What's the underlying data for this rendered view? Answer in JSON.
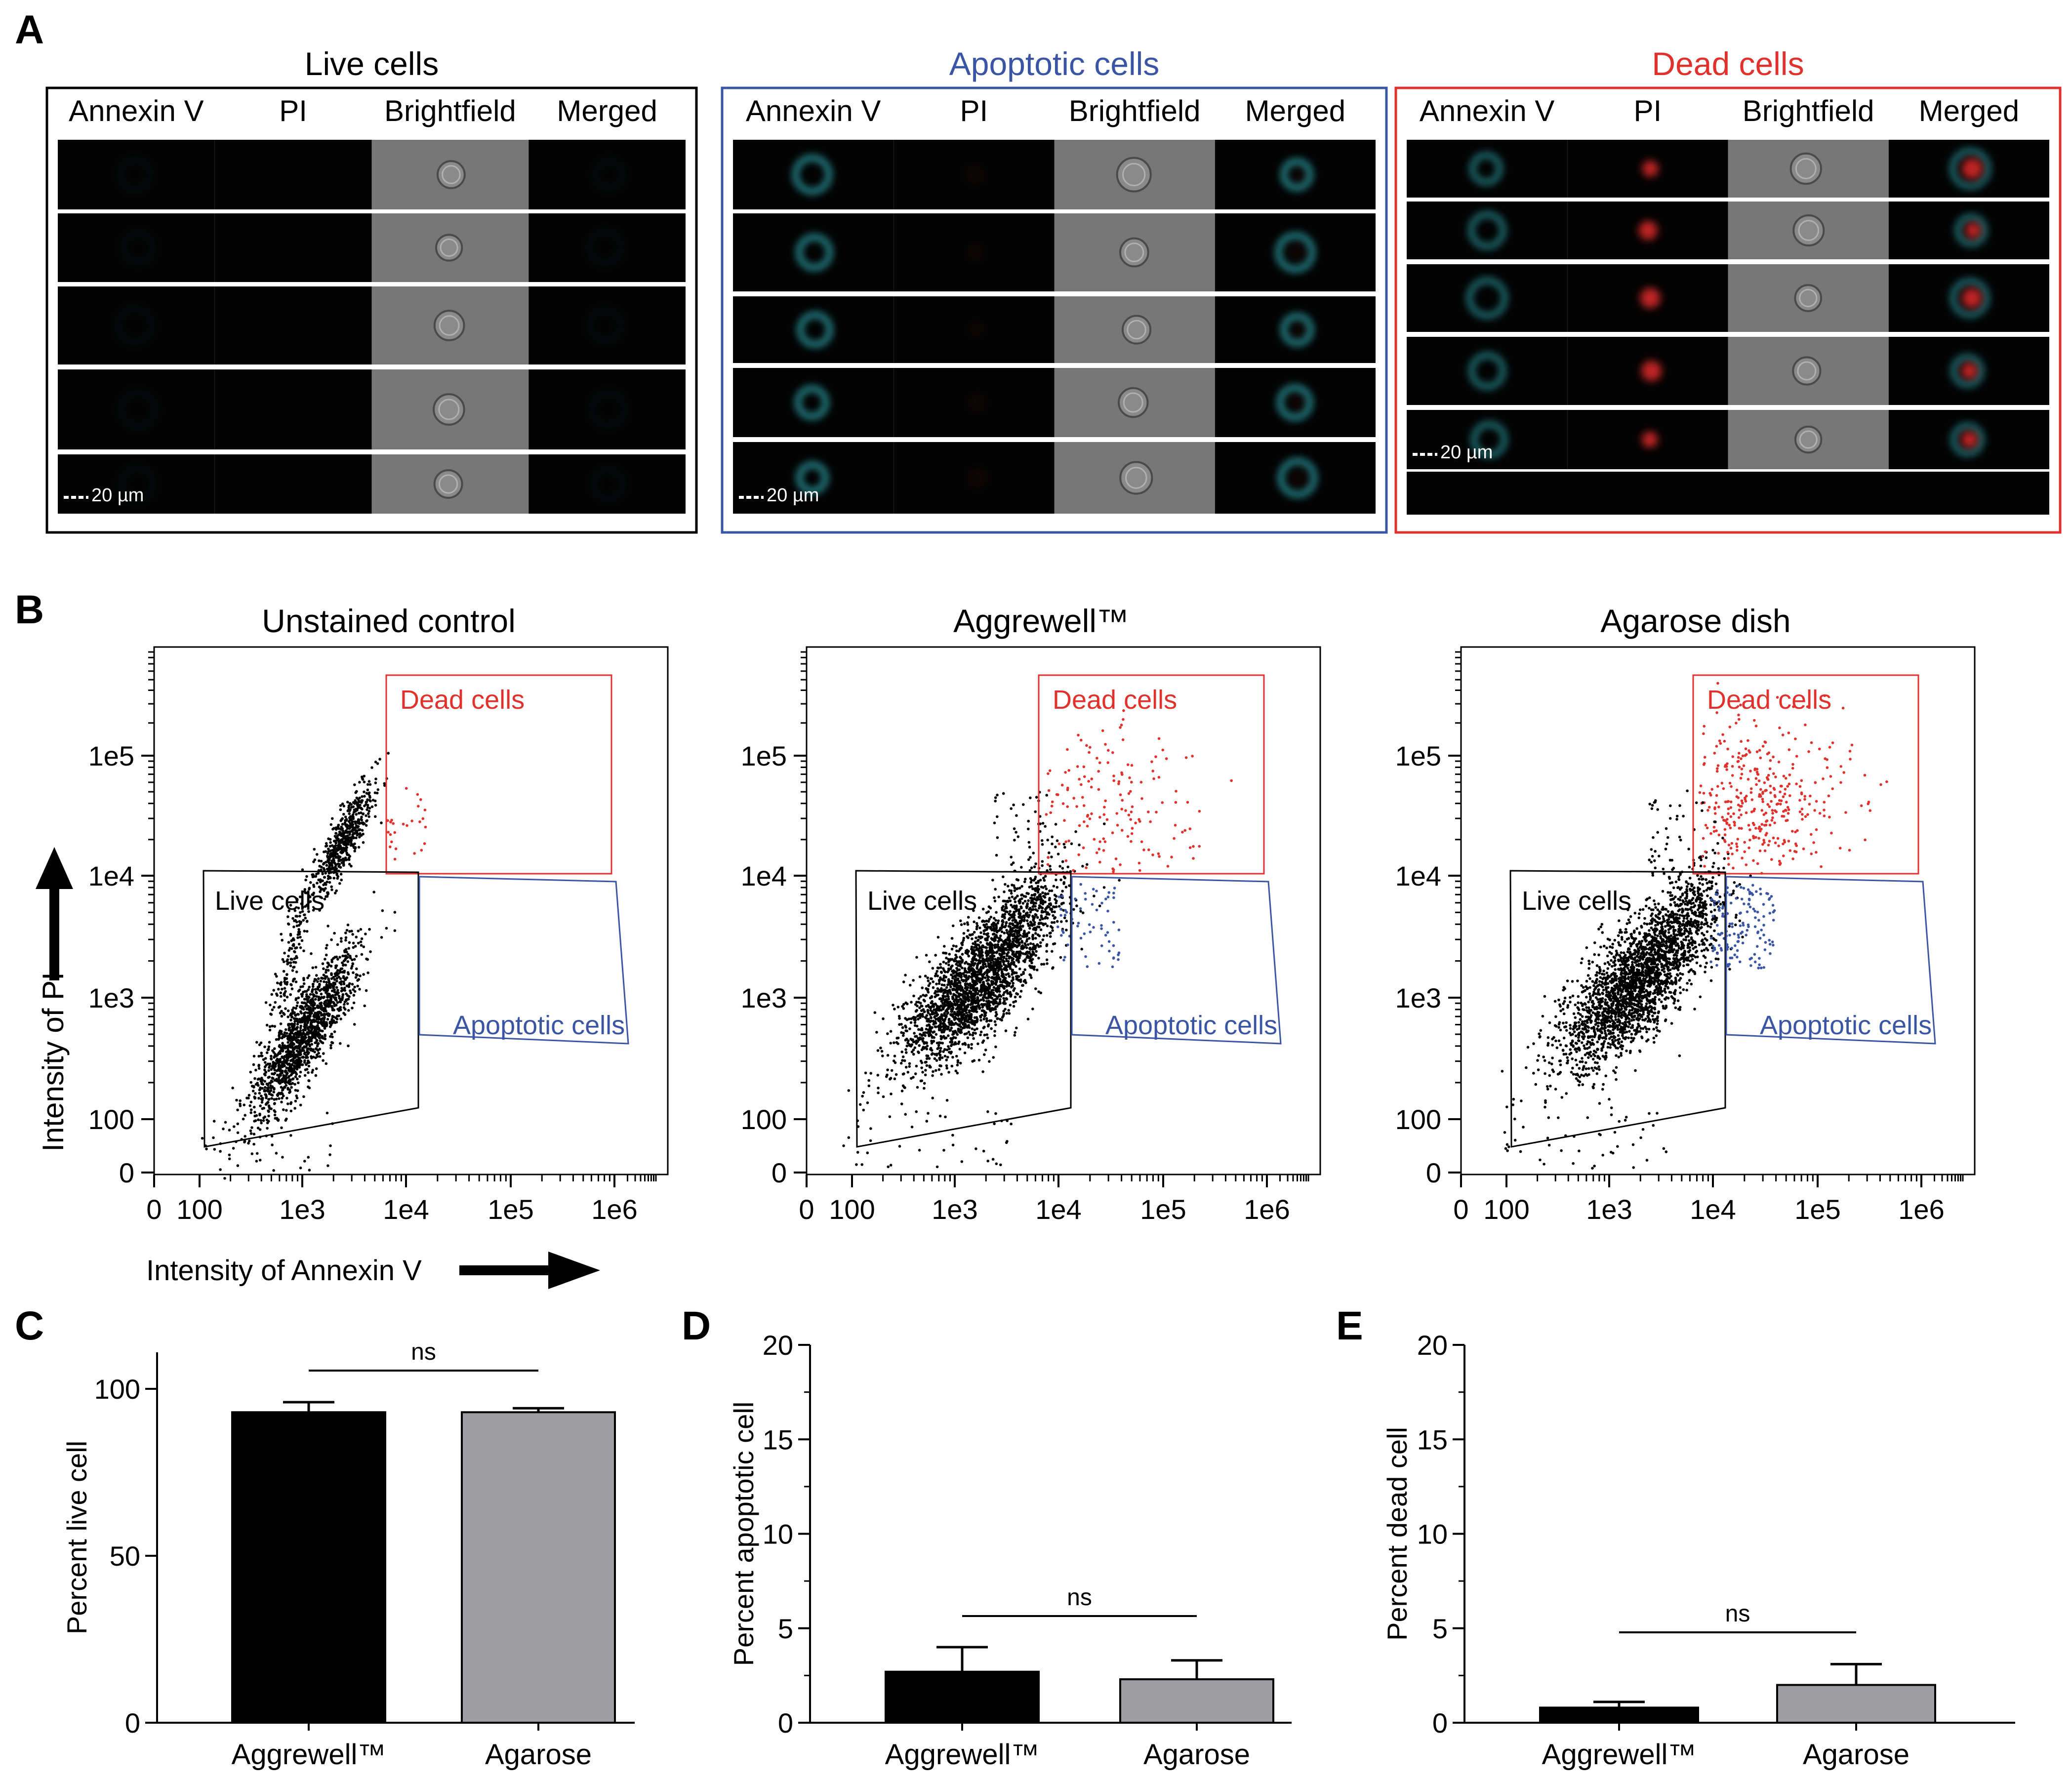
{
  "figure": {
    "panel_letters": [
      "A",
      "B",
      "C",
      "D",
      "E"
    ],
    "scale_bar_label": "20 µm"
  },
  "imaging": {
    "column_labels": [
      "Annexin V",
      "PI",
      "Brightfield",
      "Merged"
    ],
    "panels": [
      {
        "title": "Live cells",
        "color": "#000000",
        "rows": 5,
        "cell_glow": {
          "annexin": 0.05,
          "pi": 0.0
        }
      },
      {
        "title": "Apoptotic cells",
        "color": "#3a55a4",
        "rows": 5,
        "cell_glow": {
          "annexin": 0.85,
          "pi": 0.05
        }
      },
      {
        "title": "Dead cells",
        "color": "#e0312c",
        "rows": 5,
        "cell_glow": {
          "annexin": 0.7,
          "pi": 0.85
        }
      }
    ]
  },
  "flow": {
    "xlabel": "Intensity of Annexin V",
    "ylabel": "Intensity of PI",
    "x_ticks": [
      "0",
      "100",
      "1e3",
      "1e4",
      "1e5",
      "1e6"
    ],
    "y_ticks": [
      "0",
      "100",
      "1e3",
      "1e4",
      "1e5"
    ],
    "gate_labels": {
      "dead": "Dead cells",
      "live": "Live cells",
      "apoptotic": "Apoptotic cells"
    },
    "colors": {
      "dead": "#e0312c",
      "apoptotic": "#3a55a4",
      "live": "#000000"
    },
    "plots": [
      {
        "title": "Unstained control"
      },
      {
        "title": "Aggrewell™"
      },
      {
        "title": "Agarose dish"
      }
    ]
  },
  "chart_data": [
    {
      "type": "bar",
      "panel": "C",
      "categories": [
        "Aggrewell™",
        "Agarose"
      ],
      "values": [
        93,
        93
      ],
      "errors": [
        3,
        1.2
      ],
      "colors": [
        "#000000",
        "#9d9da2"
      ],
      "ylabel": "Percent live cell",
      "ylim": [
        0,
        110
      ],
      "yticks": [
        0,
        50,
        100
      ],
      "significance": "ns"
    },
    {
      "type": "bar",
      "panel": "D",
      "categories": [
        "Aggrewell™",
        "Agarose"
      ],
      "values": [
        2.7,
        2.3
      ],
      "errors": [
        1.3,
        1.0
      ],
      "colors": [
        "#000000",
        "#9d9da2"
      ],
      "ylabel": "Percent apoptotic cell",
      "ylim": [
        0,
        20
      ],
      "yticks": [
        0,
        5,
        10,
        15,
        20
      ],
      "significance": "ns"
    },
    {
      "type": "bar",
      "panel": "E",
      "categories": [
        "Aggrewell™",
        "Agarose"
      ],
      "values": [
        0.8,
        2.0
      ],
      "errors": [
        0.3,
        1.1
      ],
      "colors": [
        "#000000",
        "#9d9da2"
      ],
      "ylabel": "Percent dead cell",
      "ylim": [
        0,
        20
      ],
      "yticks": [
        0,
        5,
        10,
        15,
        20
      ],
      "significance": "ns"
    }
  ]
}
